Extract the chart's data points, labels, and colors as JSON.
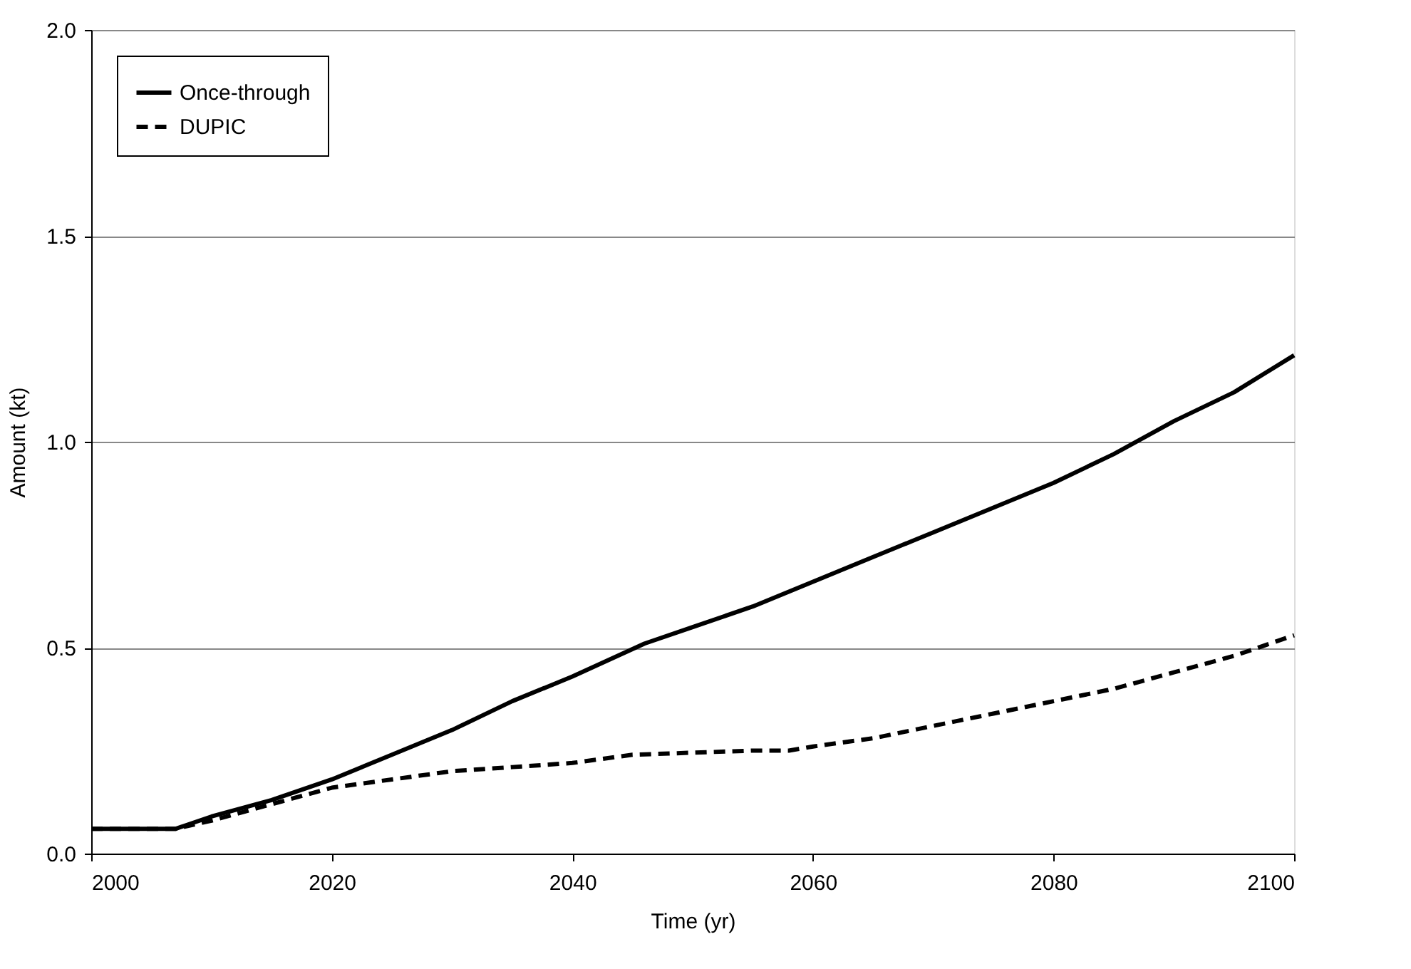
{
  "chart_data": {
    "type": "line",
    "xlabel": "Time (yr)",
    "ylabel": "Amount (kt)",
    "xlim": [
      2000,
      2100
    ],
    "xticks": [
      2000,
      2020,
      2040,
      2060,
      2080,
      2100
    ],
    "ylim": [
      0,
      2
    ],
    "yticks": [
      {
        "value": 0,
        "label": "0.0"
      },
      {
        "value": 0.5,
        "label": "0.5"
      },
      {
        "value": 1,
        "label": "1.0"
      },
      {
        "value": 1.5,
        "label": "1.5"
      },
      {
        "value": 2,
        "label": "2.0"
      }
    ],
    "grid": "y",
    "legend": "top left",
    "marker": "none",
    "series": [
      {
        "name": "Once-through",
        "color": "#000000",
        "line_style": "solid",
        "x": [
          2000,
          2007,
          2010,
          2015,
          2020,
          2025,
          2030,
          2035,
          2040,
          2046,
          2050,
          2055,
          2060,
          2065,
          2070,
          2075,
          2080,
          2085,
          2090,
          2095,
          2100
        ],
        "values": [
          0.06,
          0.06,
          0.09,
          0.13,
          0.18,
          0.24,
          0.3,
          0.37,
          0.43,
          0.51,
          0.55,
          0.6,
          0.66,
          0.72,
          0.78,
          0.84,
          0.9,
          0.97,
          1.05,
          1.12,
          1.21
        ]
      },
      {
        "name": "DUPIC",
        "color": "#000000",
        "line_style": "dashed",
        "x": [
          2000,
          2007,
          2010,
          2015,
          2020,
          2025,
          2030,
          2035,
          2040,
          2045,
          2050,
          2055,
          2058,
          2060,
          2065,
          2070,
          2075,
          2080,
          2085,
          2090,
          2095,
          2100
        ],
        "values": [
          0.06,
          0.06,
          0.08,
          0.12,
          0.16,
          0.18,
          0.2,
          0.21,
          0.22,
          0.24,
          0.245,
          0.25,
          0.25,
          0.26,
          0.28,
          0.31,
          0.34,
          0.37,
          0.4,
          0.44,
          0.48,
          0.53
        ]
      }
    ]
  }
}
